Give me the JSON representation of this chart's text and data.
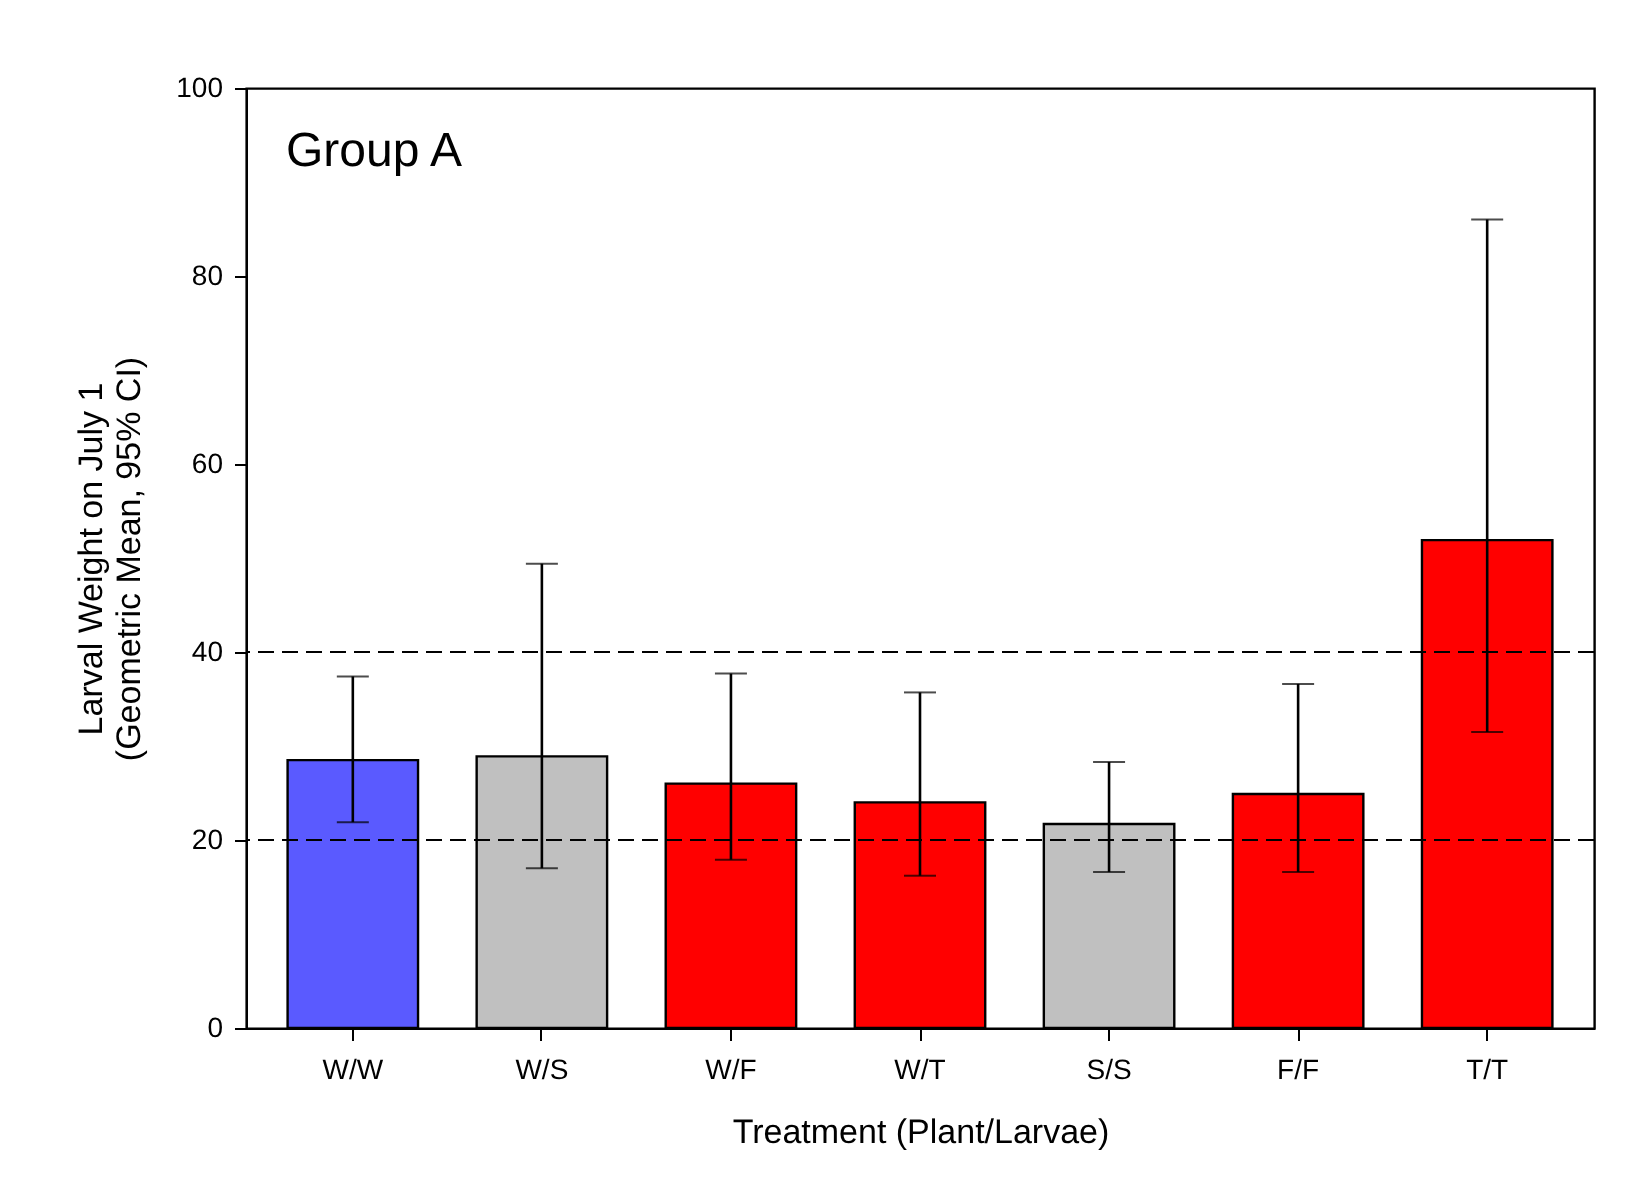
{
  "chart_data": {
    "type": "bar",
    "xlabel": "Treatment (Plant/Larvae)",
    "ylabel": "Larval Weight on July 1\n(Geometric Mean, 95% CI)",
    "categories": [
      "W/W",
      "W/S",
      "W/F",
      "W/T",
      "S/S",
      "F/F",
      "T/T"
    ],
    "values": [
      28.5,
      28.9,
      26,
      24,
      21.7,
      24.9,
      51.9
    ],
    "colors": [
      "#5a5aff",
      "#c0c0c0",
      "#ff0000",
      "#ff0000",
      "#c0c0c0",
      "#ff0000",
      "#ff0000"
    ],
    "errors": [
      [
        21.9,
        37.4
      ],
      [
        17,
        49.4
      ],
      [
        17.9,
        37.7
      ],
      [
        16.2,
        35.7
      ],
      [
        16.6,
        28.3
      ],
      [
        16.6,
        36.6
      ],
      [
        31.5,
        86
      ]
    ],
    "ylim": [
      0,
      100
    ],
    "yticks": [
      0,
      20,
      40,
      60,
      80,
      100
    ],
    "grid": false,
    "ref_lines": [
      {
        "axis": "y",
        "value": 20,
        "line_style": "dashed"
      },
      {
        "axis": "y",
        "value": 40,
        "line_style": "dashed"
      }
    ],
    "annotations": [
      "Group A"
    ]
  }
}
